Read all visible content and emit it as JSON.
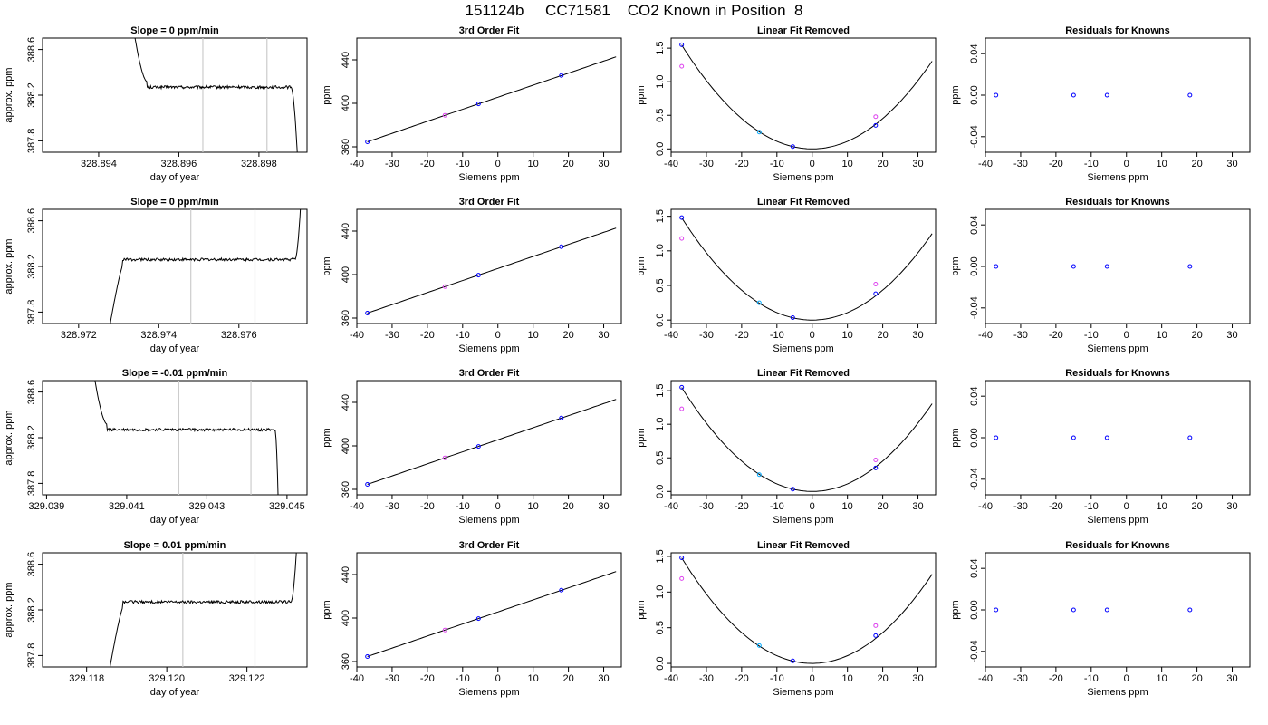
{
  "figure_title": "151124b     CC71581    CO2 Known in Position  8",
  "colors": {
    "frame": "#000000",
    "trace": "#000000",
    "vline": "#cccccc",
    "marker_blue": "#0000ff",
    "marker_magenta": "#dd44ee",
    "marker_cyan": "#00aaff"
  },
  "chart_data": [
    {
      "type": "line",
      "title": "Slope =  0  ppm/min",
      "xlabel": "day of year",
      "ylabel": "approx. ppm",
      "xlim": [
        328.8926,
        328.8992
      ],
      "ylim": [
        387.7,
        388.7
      ],
      "xticks": [
        "328.894",
        "328.896",
        "328.898"
      ],
      "xtick_values": [
        328.894,
        328.896,
        328.898
      ],
      "yticks": [
        "387.8",
        "388.2",
        "388.6"
      ],
      "ytick_values": [
        387.8,
        388.2,
        388.6
      ],
      "vlines": [
        328.8966,
        328.8982
      ],
      "trace": {
        "x0": 328.8947,
        "x1": 328.899,
        "level": 388.27,
        "noise": 0.012,
        "start_mode": "high",
        "end_mode": "low",
        "rise_end": 328.8952,
        "fall_start": 328.8988
      }
    },
    {
      "type": "scatter",
      "title": "3rd Order Fit",
      "xlabel": "Siemens ppm",
      "ylabel": "ppm",
      "xlim": [
        -40,
        35
      ],
      "ylim": [
        355,
        460
      ],
      "xticks": [
        "-40",
        "-30",
        "-20",
        "-10",
        "0",
        "10",
        "20",
        "30"
      ],
      "xtick_values": [
        -40,
        -30,
        -20,
        -10,
        0,
        10,
        20,
        30
      ],
      "yticks": [
        "360",
        "400",
        "440"
      ],
      "ytick_values": [
        360,
        400,
        440
      ],
      "line": {
        "type": "linear",
        "slope": 1.108,
        "intercept": 405.6,
        "x_range": [
          -37,
          33.5
        ]
      },
      "points": [
        {
          "x": -37,
          "y": 364.6,
          "color": "blue"
        },
        {
          "x": -15,
          "y": 389.0,
          "color": "magenta"
        },
        {
          "x": -5.5,
          "y": 399.5,
          "color": "blue"
        },
        {
          "x": 18,
          "y": 425.6,
          "color": "blue"
        }
      ]
    },
    {
      "type": "scatter",
      "title": "Linear Fit Removed",
      "xlabel": "Siemens ppm",
      "ylabel": "ppm",
      "xlim": [
        -40,
        35
      ],
      "ylim": [
        -0.05,
        1.65
      ],
      "xticks": [
        "-40",
        "-30",
        "-20",
        "-10",
        "0",
        "10",
        "20",
        "30"
      ],
      "xtick_values": [
        -40,
        -30,
        -20,
        -10,
        0,
        10,
        20,
        30
      ],
      "yticks": [
        "0.0",
        "0.5",
        "1.0",
        "1.5"
      ],
      "ytick_values": [
        0,
        0.5,
        1.0,
        1.5
      ],
      "line": {
        "type": "quadratic",
        "a": 0.00113,
        "b": 0.0,
        "c": 0.0,
        "x_range": [
          -37,
          34
        ]
      },
      "points": [
        {
          "x": -37,
          "y": 1.55,
          "color": "blue"
        },
        {
          "x": -37,
          "y": 1.23,
          "color": "magenta"
        },
        {
          "x": -15,
          "y": 0.25,
          "color": "cyan"
        },
        {
          "x": -5.5,
          "y": 0.035,
          "color": "blue"
        },
        {
          "x": 18,
          "y": 0.35,
          "color": "blue"
        },
        {
          "x": 18,
          "y": 0.48,
          "color": "magenta"
        }
      ]
    },
    {
      "type": "scatter",
      "title": "Residuals for Knowns",
      "xlabel": "Siemens ppm",
      "ylabel": "ppm",
      "xlim": [
        -40,
        35
      ],
      "ylim": [
        -0.055,
        0.055
      ],
      "xticks": [
        "-40",
        "-30",
        "-20",
        "-10",
        "0",
        "10",
        "20",
        "30"
      ],
      "xtick_values": [
        -40,
        -30,
        -20,
        -10,
        0,
        10,
        20,
        30
      ],
      "yticks": [
        "-0.04",
        "0.00",
        "0.04"
      ],
      "ytick_values": [
        -0.04,
        0,
        0.04
      ],
      "points": [
        {
          "x": -37,
          "y": 0,
          "color": "blue"
        },
        {
          "x": -15,
          "y": 0,
          "color": "blue"
        },
        {
          "x": -5.5,
          "y": 0,
          "color": "blue"
        },
        {
          "x": 18,
          "y": 0,
          "color": "blue"
        }
      ]
    },
    {
      "type": "line",
      "title": "Slope =  0  ppm/min",
      "xlabel": "day of year",
      "ylabel": "approx. ppm",
      "xlim": [
        328.9711,
        328.9777
      ],
      "ylim": [
        387.7,
        388.7
      ],
      "xticks": [
        "328.972",
        "328.974",
        "328.976"
      ],
      "xtick_values": [
        328.972,
        328.974,
        328.976
      ],
      "yticks": [
        "387.8",
        "388.2",
        "388.6"
      ],
      "ytick_values": [
        387.8,
        388.2,
        388.6
      ],
      "vlines": [
        328.9748,
        328.9764
      ],
      "trace": {
        "x0": 328.9726,
        "x1": 328.9776,
        "level": 388.26,
        "noise": 0.012,
        "start_mode": "low",
        "end_mode": "high",
        "rise_end": 328.9731,
        "fall_start": 328.9774
      }
    },
    {
      "type": "scatter",
      "title": "3rd Order Fit",
      "xlabel": "Siemens ppm",
      "ylabel": "ppm",
      "xlim": [
        -40,
        35
      ],
      "ylim": [
        355,
        460
      ],
      "xticks": [
        "-40",
        "-30",
        "-20",
        "-10",
        "0",
        "10",
        "20",
        "30"
      ],
      "xtick_values": [
        -40,
        -30,
        -20,
        -10,
        0,
        10,
        20,
        30
      ],
      "yticks": [
        "360",
        "400",
        "440"
      ],
      "ytick_values": [
        360,
        400,
        440
      ],
      "line": {
        "type": "linear",
        "slope": 1.108,
        "intercept": 405.6,
        "x_range": [
          -37,
          33.5
        ]
      },
      "points": [
        {
          "x": -37,
          "y": 364.6,
          "color": "blue"
        },
        {
          "x": -15,
          "y": 389.0,
          "color": "magenta"
        },
        {
          "x": -5.5,
          "y": 399.5,
          "color": "blue"
        },
        {
          "x": 18,
          "y": 425.6,
          "color": "blue"
        }
      ]
    },
    {
      "type": "scatter",
      "title": "Linear Fit Removed",
      "xlabel": "Siemens ppm",
      "ylabel": "ppm",
      "xlim": [
        -40,
        35
      ],
      "ylim": [
        -0.05,
        1.6
      ],
      "xticks": [
        "-40",
        "-30",
        "-20",
        "-10",
        "0",
        "10",
        "20",
        "30"
      ],
      "xtick_values": [
        -40,
        -30,
        -20,
        -10,
        0,
        10,
        20,
        30
      ],
      "yticks": [
        "0.0",
        "0.5",
        "1.0",
        "1.5"
      ],
      "ytick_values": [
        0,
        0.5,
        1.0,
        1.5
      ],
      "line": {
        "type": "quadratic",
        "a": 0.00108,
        "b": 0.0,
        "c": 0.0,
        "x_range": [
          -37,
          34
        ]
      },
      "points": [
        {
          "x": -37,
          "y": 1.48,
          "color": "blue"
        },
        {
          "x": -37,
          "y": 1.18,
          "color": "magenta"
        },
        {
          "x": -15,
          "y": 0.25,
          "color": "cyan"
        },
        {
          "x": -5.5,
          "y": 0.035,
          "color": "blue"
        },
        {
          "x": 18,
          "y": 0.38,
          "color": "blue"
        },
        {
          "x": 18,
          "y": 0.52,
          "color": "magenta"
        }
      ]
    },
    {
      "type": "scatter",
      "title": "Residuals for Knowns",
      "xlabel": "Siemens ppm",
      "ylabel": "ppm",
      "xlim": [
        -40,
        35
      ],
      "ylim": [
        -0.055,
        0.055
      ],
      "xticks": [
        "-40",
        "-30",
        "-20",
        "-10",
        "0",
        "10",
        "20",
        "30"
      ],
      "xtick_values": [
        -40,
        -30,
        -20,
        -10,
        0,
        10,
        20,
        30
      ],
      "yticks": [
        "-0.04",
        "0.00",
        "0.04"
      ],
      "ytick_values": [
        -0.04,
        0,
        0.04
      ],
      "points": [
        {
          "x": -37,
          "y": 0,
          "color": "blue"
        },
        {
          "x": -15,
          "y": 0,
          "color": "blue"
        },
        {
          "x": -5.5,
          "y": 0,
          "color": "blue"
        },
        {
          "x": 18,
          "y": 0,
          "color": "blue"
        }
      ]
    },
    {
      "type": "line",
      "title": "Slope =  -0.01  ppm/min",
      "xlabel": "day of year",
      "ylabel": "approx. ppm",
      "xlim": [
        329.0389,
        329.0455
      ],
      "ylim": [
        387.7,
        388.7
      ],
      "xticks": [
        "329.039",
        "329.041",
        "329.043",
        "329.045"
      ],
      "xtick_values": [
        329.039,
        329.041,
        329.043,
        329.045
      ],
      "yticks": [
        "387.8",
        "388.2",
        "388.6"
      ],
      "ytick_values": [
        387.8,
        388.2,
        388.6
      ],
      "vlines": [
        329.0423,
        329.0441
      ],
      "trace": {
        "x0": 329.04,
        "x1": 329.0448,
        "level": 388.27,
        "noise": 0.012,
        "start_mode": "high",
        "end_mode": "low",
        "rise_end": 329.0405,
        "fall_start": 329.0447
      }
    },
    {
      "type": "scatter",
      "title": "3rd Order Fit",
      "xlabel": "Siemens ppm",
      "ylabel": "ppm",
      "xlim": [
        -40,
        35
      ],
      "ylim": [
        355,
        460
      ],
      "xticks": [
        "-40",
        "-30",
        "-20",
        "-10",
        "0",
        "10",
        "20",
        "30"
      ],
      "xtick_values": [
        -40,
        -30,
        -20,
        -10,
        0,
        10,
        20,
        30
      ],
      "yticks": [
        "360",
        "400",
        "440"
      ],
      "ytick_values": [
        360,
        400,
        440
      ],
      "line": {
        "type": "linear",
        "slope": 1.108,
        "intercept": 405.6,
        "x_range": [
          -37,
          33.5
        ]
      },
      "points": [
        {
          "x": -37,
          "y": 364.6,
          "color": "blue"
        },
        {
          "x": -15,
          "y": 389.0,
          "color": "magenta"
        },
        {
          "x": -5.5,
          "y": 399.5,
          "color": "blue"
        },
        {
          "x": 18,
          "y": 425.6,
          "color": "blue"
        }
      ]
    },
    {
      "type": "scatter",
      "title": "Linear Fit Removed",
      "xlabel": "Siemens ppm",
      "ylabel": "ppm",
      "xlim": [
        -40,
        35
      ],
      "ylim": [
        -0.05,
        1.65
      ],
      "xticks": [
        "-40",
        "-30",
        "-20",
        "-10",
        "0",
        "10",
        "20",
        "30"
      ],
      "xtick_values": [
        -40,
        -30,
        -20,
        -10,
        0,
        10,
        20,
        30
      ],
      "yticks": [
        "0.0",
        "0.5",
        "1.0",
        "1.5"
      ],
      "ytick_values": [
        0,
        0.5,
        1.0,
        1.5
      ],
      "line": {
        "type": "quadratic",
        "a": 0.00113,
        "b": 0.0,
        "c": 0.0,
        "x_range": [
          -37,
          34
        ]
      },
      "points": [
        {
          "x": -37,
          "y": 1.55,
          "color": "blue"
        },
        {
          "x": -37,
          "y": 1.23,
          "color": "magenta"
        },
        {
          "x": -15,
          "y": 0.25,
          "color": "cyan"
        },
        {
          "x": -5.5,
          "y": 0.035,
          "color": "blue"
        },
        {
          "x": 18,
          "y": 0.35,
          "color": "blue"
        },
        {
          "x": 18,
          "y": 0.47,
          "color": "magenta"
        }
      ]
    },
    {
      "type": "scatter",
      "title": "Residuals for Knowns",
      "xlabel": "Siemens ppm",
      "ylabel": "ppm",
      "xlim": [
        -40,
        35
      ],
      "ylim": [
        -0.055,
        0.055
      ],
      "xticks": [
        "-40",
        "-30",
        "-20",
        "-10",
        "0",
        "10",
        "20",
        "30"
      ],
      "xtick_values": [
        -40,
        -30,
        -20,
        -10,
        0,
        10,
        20,
        30
      ],
      "yticks": [
        "-0.04",
        "0.00",
        "0.04"
      ],
      "ytick_values": [
        -0.04,
        0,
        0.04
      ],
      "points": [
        {
          "x": -37,
          "y": 0,
          "color": "blue"
        },
        {
          "x": -15,
          "y": 0,
          "color": "blue"
        },
        {
          "x": -5.5,
          "y": 0,
          "color": "blue"
        },
        {
          "x": 18,
          "y": 0,
          "color": "blue"
        }
      ]
    },
    {
      "type": "line",
      "title": "Slope =  0.01  ppm/min",
      "xlabel": "day of year",
      "ylabel": "approx. ppm",
      "xlim": [
        329.1169,
        329.1235
      ],
      "ylim": [
        387.7,
        388.7
      ],
      "xticks": [
        "329.118",
        "329.120",
        "329.122"
      ],
      "xtick_values": [
        329.118,
        329.12,
        329.122
      ],
      "yticks": [
        "387.8",
        "388.2",
        "388.6"
      ],
      "ytick_values": [
        387.8,
        388.2,
        388.6
      ],
      "vlines": [
        329.1204,
        329.1222
      ],
      "trace": {
        "x0": 329.1184,
        "x1": 329.1233,
        "level": 388.27,
        "noise": 0.012,
        "start_mode": "low",
        "end_mode": "high",
        "rise_end": 329.1189,
        "fall_start": 329.1231
      }
    },
    {
      "type": "scatter",
      "title": "3rd Order Fit",
      "xlabel": "Siemens ppm",
      "ylabel": "ppm",
      "xlim": [
        -40,
        35
      ],
      "ylim": [
        355,
        460
      ],
      "xticks": [
        "-40",
        "-30",
        "-20",
        "-10",
        "0",
        "10",
        "20",
        "30"
      ],
      "xtick_values": [
        -40,
        -30,
        -20,
        -10,
        0,
        10,
        20,
        30
      ],
      "yticks": [
        "360",
        "400",
        "440"
      ],
      "ytick_values": [
        360,
        400,
        440
      ],
      "line": {
        "type": "linear",
        "slope": 1.108,
        "intercept": 405.6,
        "x_range": [
          -37,
          33.5
        ]
      },
      "points": [
        {
          "x": -37,
          "y": 364.6,
          "color": "blue"
        },
        {
          "x": -15,
          "y": 389.0,
          "color": "magenta"
        },
        {
          "x": -5.5,
          "y": 399.5,
          "color": "blue"
        },
        {
          "x": 18,
          "y": 425.6,
          "color": "blue"
        }
      ]
    },
    {
      "type": "scatter",
      "title": "Linear Fit Removed",
      "xlabel": "Siemens ppm",
      "ylabel": "ppm",
      "xlim": [
        -40,
        35
      ],
      "ylim": [
        -0.05,
        1.55
      ],
      "xticks": [
        "-40",
        "-30",
        "-20",
        "-10",
        "0",
        "10",
        "20",
        "30"
      ],
      "xtick_values": [
        -40,
        -30,
        -20,
        -10,
        0,
        10,
        20,
        30
      ],
      "yticks": [
        "0.0",
        "0.5",
        "1.0",
        "1.5"
      ],
      "ytick_values": [
        0,
        0.5,
        1.0,
        1.5
      ],
      "line": {
        "type": "quadratic",
        "a": 0.00108,
        "b": 0.0,
        "c": 0.0,
        "x_range": [
          -37,
          34
        ]
      },
      "points": [
        {
          "x": -37,
          "y": 1.48,
          "color": "blue"
        },
        {
          "x": -37,
          "y": 1.19,
          "color": "magenta"
        },
        {
          "x": -15,
          "y": 0.25,
          "color": "cyan"
        },
        {
          "x": -5.5,
          "y": 0.035,
          "color": "blue"
        },
        {
          "x": 18,
          "y": 0.39,
          "color": "blue"
        },
        {
          "x": 18,
          "y": 0.53,
          "color": "magenta"
        }
      ]
    },
    {
      "type": "scatter",
      "title": "Residuals for Knowns",
      "xlabel": "Siemens ppm",
      "ylabel": "ppm",
      "xlim": [
        -40,
        35
      ],
      "ylim": [
        -0.055,
        0.055
      ],
      "xticks": [
        "-40",
        "-30",
        "-20",
        "-10",
        "0",
        "10",
        "20",
        "30"
      ],
      "xtick_values": [
        -40,
        -30,
        -20,
        -10,
        0,
        10,
        20,
        30
      ],
      "yticks": [
        "-0.04",
        "0.00",
        "0.04"
      ],
      "ytick_values": [
        -0.04,
        0,
        0.04
      ],
      "points": [
        {
          "x": -37,
          "y": 0,
          "color": "blue"
        },
        {
          "x": -15,
          "y": 0,
          "color": "blue"
        },
        {
          "x": -5.5,
          "y": 0,
          "color": "blue"
        },
        {
          "x": 18,
          "y": 0,
          "color": "blue"
        }
      ]
    }
  ]
}
